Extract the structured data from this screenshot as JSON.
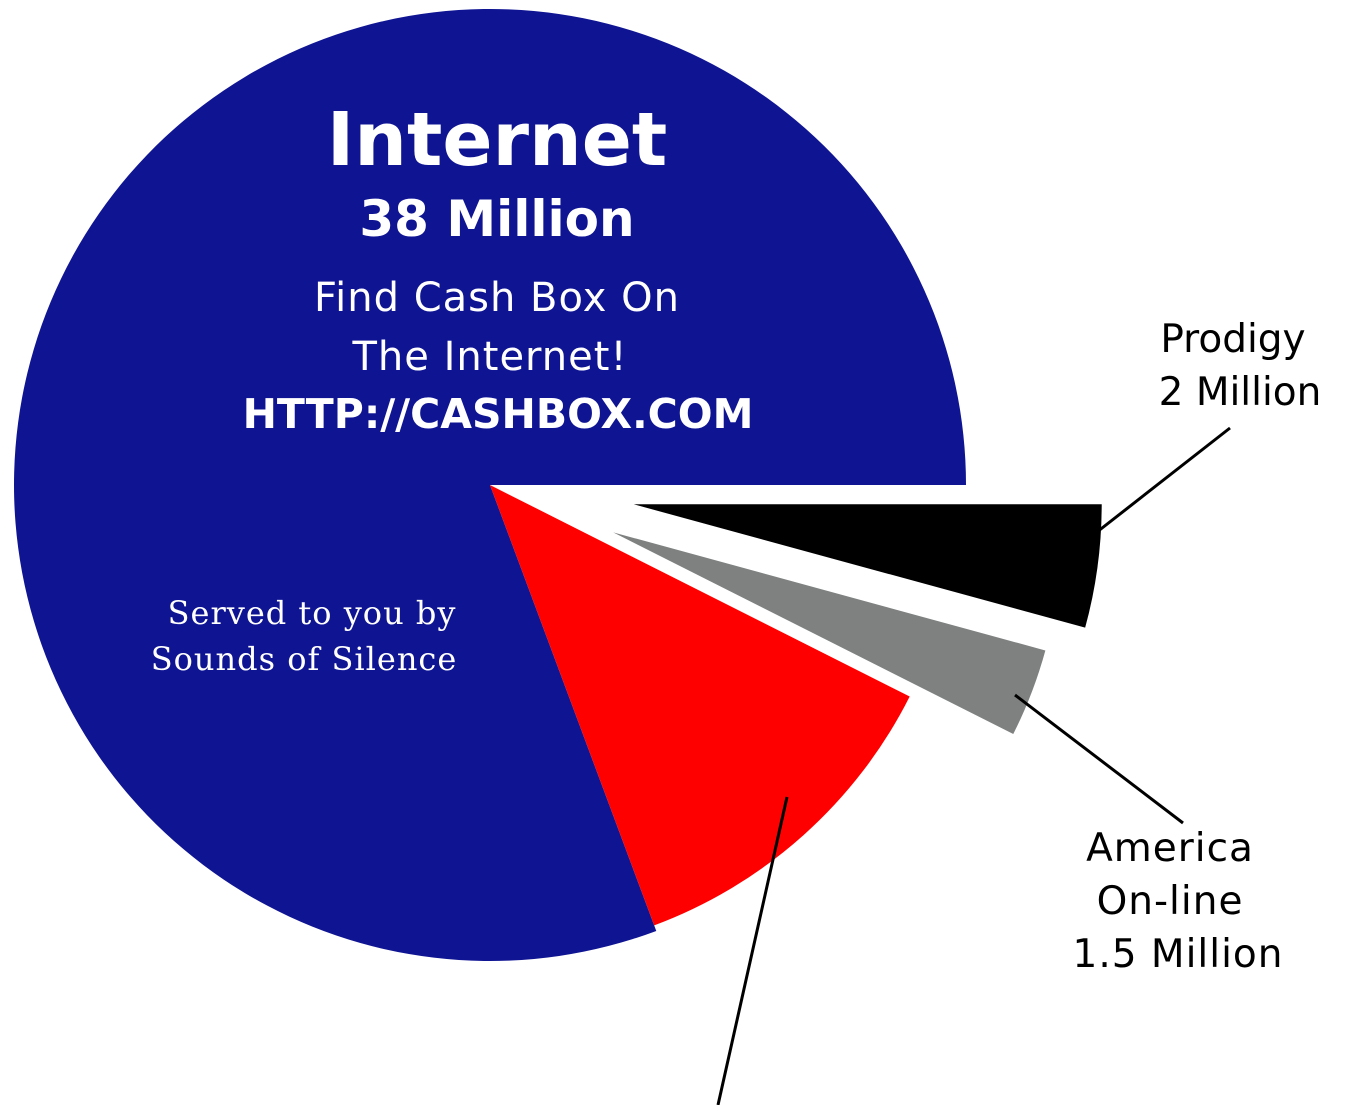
{
  "chart_data": {
    "type": "pie",
    "exploded": true,
    "slices": [
      {
        "label": "Internet",
        "value": 38,
        "value_label": "38 Million",
        "color": "#0f1493"
      },
      {
        "label": "",
        "value": 5.6,
        "value_label": "",
        "color": "#ff0000"
      },
      {
        "label": "America On-line",
        "value": 1.5,
        "value_label": "1.5 Million",
        "color": "#7e8180"
      },
      {
        "label": "Prodigy",
        "value": 2,
        "value_label": "2 Million",
        "color": "#000000"
      }
    ],
    "internet_text": {
      "title": "Internet",
      "value": "38 Million",
      "line1": "Find Cash Box On",
      "line2": "The Internet!",
      "url": "HTTP://CASHBOX.COM"
    },
    "served_text": {
      "line1": "Served to you by",
      "line2": "Sounds of Silence"
    },
    "callouts": {
      "prodigy_name": "Prodigy",
      "prodigy_value": "2 Million",
      "aol_line1": "America",
      "aol_line2": "On-line",
      "aol_value": "1.5 Million"
    }
  }
}
